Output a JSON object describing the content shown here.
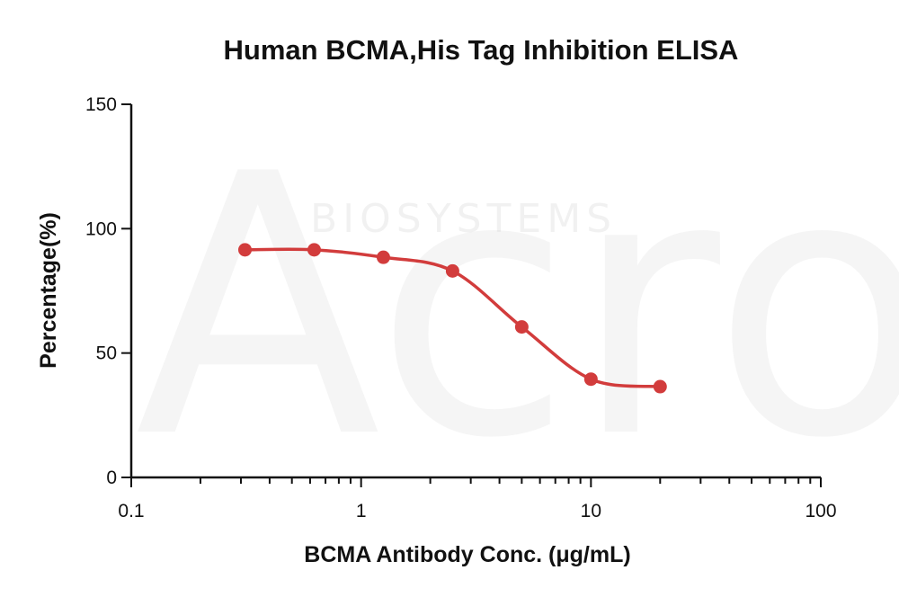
{
  "chart_data": {
    "type": "scatter",
    "title": "Human BCMA,His Tag Inhibition ELISA",
    "xlabel": "BCMA Antibody Conc. (μg/mL)",
    "ylabel": "Percentage(%)",
    "xscale": "log",
    "xlim": [
      0.1,
      100
    ],
    "ylim": [
      0,
      150
    ],
    "xticks": [
      0.1,
      1,
      10,
      100
    ],
    "xtick_labels": [
      "0.1",
      "1",
      "10",
      "100"
    ],
    "yticks": [
      0,
      50,
      100,
      150
    ],
    "ytick_labels": [
      "0",
      "50",
      "100",
      "150"
    ],
    "grid": false,
    "series": [
      {
        "x": [
          0.3125,
          0.625,
          1.25,
          2.5,
          5,
          10,
          20
        ],
        "y": [
          91.5,
          91.5,
          88.5,
          83,
          60.5,
          39.5,
          36.5
        ],
        "fit_curve": true,
        "color": "#d23c3c"
      }
    ],
    "watermark": {
      "logo": "Acro",
      "text": "BIOSYSTEMS"
    }
  }
}
